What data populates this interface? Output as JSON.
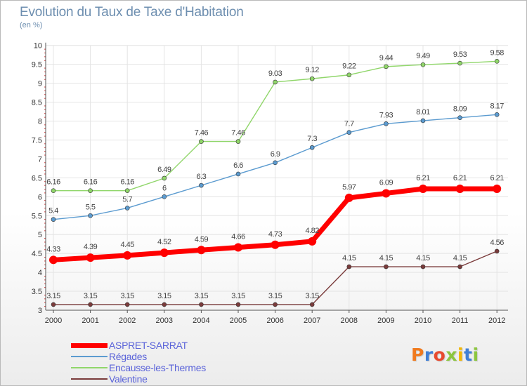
{
  "chart_data": {
    "type": "line",
    "title": "Evolution du Taux de Taxe d'Habitation",
    "subtitle": "(en %)",
    "xlabel": "",
    "ylabel": "",
    "ylim": [
      3,
      10
    ],
    "y_ticks": [
      "3",
      "3.5",
      "4",
      "4.5",
      "5",
      "5.5",
      "6",
      "6.5",
      "7",
      "7.5",
      "8",
      "8.5",
      "9",
      "9.5",
      "10"
    ],
    "categories": [
      "2000",
      "2001",
      "2002",
      "2003",
      "2004",
      "2005",
      "2006",
      "2007",
      "2008",
      "2009",
      "2010",
      "2011",
      "2012"
    ],
    "grid": true,
    "legend_position": "bottom-left",
    "series": [
      {
        "name": "ASPRET-SARRAT",
        "color": "#ff0000",
        "values": [
          4.33,
          4.39,
          4.45,
          4.52,
          4.59,
          4.66,
          4.73,
          4.82,
          5.97,
          6.09,
          6.21,
          6.21,
          6.21
        ],
        "labels": [
          "4.33",
          "4.39",
          "4.45",
          "4.52",
          "4.59",
          "4.66",
          "4.73",
          "4.82",
          "5.97",
          "6.09",
          "6.21",
          "6.21",
          "6.21"
        ]
      },
      {
        "name": "Régades",
        "color": "#5b9bd0",
        "values": [
          5.4,
          5.5,
          5.7,
          6,
          6.3,
          6.6,
          6.9,
          7.3,
          7.7,
          7.93,
          8.01,
          8.09,
          8.17
        ],
        "labels": [
          "5.4",
          "5.5",
          "5.7",
          "6",
          "6.3",
          "6.6",
          "6.9",
          "7.3",
          "7.7",
          "7.93",
          "8.01",
          "8.09",
          "8.17"
        ]
      },
      {
        "name": "Encausse-les-Thermes",
        "color": "#90d66a",
        "values": [
          6.16,
          6.16,
          6.16,
          6.49,
          7.46,
          7.46,
          9.03,
          9.12,
          9.22,
          9.44,
          9.49,
          9.53,
          9.58
        ],
        "labels": [
          "6.16",
          "6.16",
          "6.16",
          "6.49",
          "7.46",
          "7.46",
          "9.03",
          "9.12",
          "9.22",
          "9.44",
          "9.49",
          "9.53",
          "9.58"
        ]
      },
      {
        "name": "Valentine",
        "color": "#7a3b3b",
        "values": [
          3.15,
          3.15,
          3.15,
          3.15,
          3.15,
          3.15,
          3.15,
          3.15,
          4.15,
          4.15,
          4.15,
          4.15,
          4.56
        ],
        "labels": [
          "3.15",
          "3.15",
          "3.15",
          "3.15",
          "3.15",
          "3.15",
          "3.15",
          "3.15",
          "4.15",
          "4.15",
          "4.15",
          "4.15",
          "4.56"
        ]
      }
    ]
  },
  "logo": {
    "text": "Proxiti",
    "colors": [
      "#f07a1e",
      "#3f7fd6",
      "#e84a2f",
      "#8cc63f",
      "#f2b705",
      "#3f7fd6",
      "#8cc63f"
    ]
  }
}
